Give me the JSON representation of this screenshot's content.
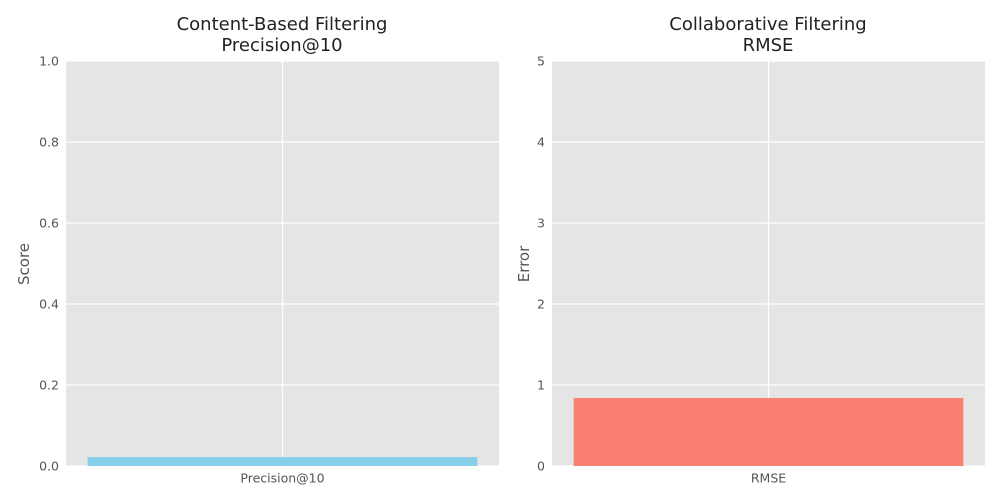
{
  "chart_data": [
    {
      "type": "bar",
      "title_lines": [
        "Content-Based Filtering",
        "Precision@10"
      ],
      "categories": [
        "Precision@10"
      ],
      "values": [
        0.022
      ],
      "ylabel": "Score",
      "xlabel": "",
      "ylim": [
        0,
        1.0
      ],
      "yticks": [
        "0.0",
        "0.2",
        "0.4",
        "0.6",
        "0.8",
        "1.0"
      ],
      "ytick_values": [
        0,
        0.2,
        0.4,
        0.6,
        0.8,
        1.0
      ],
      "bar_color": "#87ceeb",
      "grid": true
    },
    {
      "type": "bar",
      "title_lines": [
        "Collaborative Filtering",
        "RMSE"
      ],
      "categories": [
        "RMSE"
      ],
      "values": [
        0.84
      ],
      "ylabel": "Error",
      "xlabel": "",
      "ylim": [
        0,
        5
      ],
      "yticks": [
        "0",
        "1",
        "2",
        "3",
        "4",
        "5"
      ],
      "ytick_values": [
        0,
        1,
        2,
        3,
        4,
        5
      ],
      "bar_color": "#fa8072",
      "grid": true
    }
  ]
}
